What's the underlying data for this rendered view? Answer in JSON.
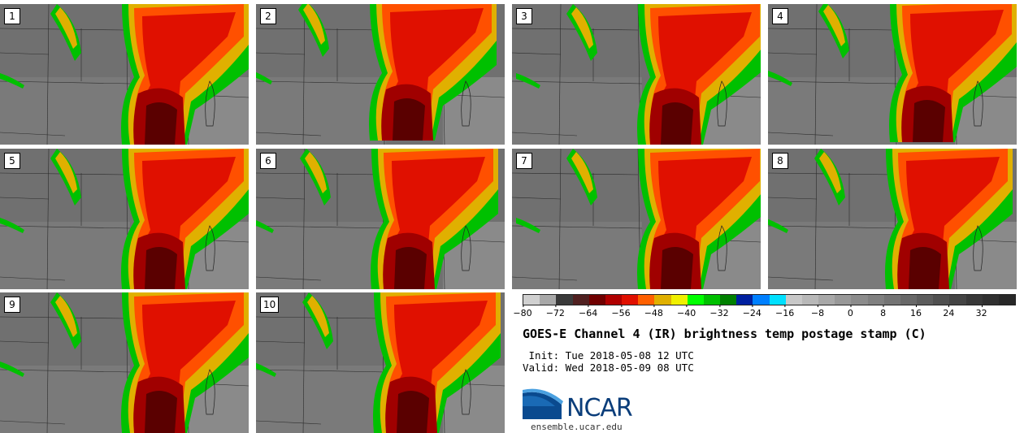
{
  "panels": [
    {
      "label": "1"
    },
    {
      "label": "2"
    },
    {
      "label": "3"
    },
    {
      "label": "4"
    },
    {
      "label": "5"
    },
    {
      "label": "6"
    },
    {
      "label": "7"
    },
    {
      "label": "8"
    },
    {
      "label": "9"
    },
    {
      "label": "10"
    }
  ],
  "legend": {
    "ticks": [
      "−80",
      "−72",
      "−64",
      "−56",
      "−48",
      "−40",
      "−32",
      "−24",
      "−16",
      "−8",
      "0",
      "8",
      "16",
      "24",
      "32"
    ],
    "range": [
      -80,
      40
    ],
    "colors": [
      "#d0d0d0",
      "#a8a8a8",
      "#3a3a3a",
      "#502020",
      "#700000",
      "#b00000",
      "#e01000",
      "#ff6000",
      "#e0b000",
      "#f0f000",
      "#00ff00",
      "#00c000",
      "#008000",
      "#0020a0",
      "#0080ff",
      "#00e0ff",
      "#c8c8c8",
      "#b8b8b8",
      "#a8a8a8",
      "#989898",
      "#8c8c8c",
      "#808080",
      "#747474",
      "#686868",
      "#5c5c5c",
      "#505050",
      "#444444",
      "#383838",
      "#303030",
      "#282828"
    ]
  },
  "title": "GOES-E Channel 4 (IR) brightness temp postage stamp (C)",
  "init_line": " Init: Tue 2018-05-08 12 UTC",
  "valid_line": "Valid: Wed 2018-05-09 08 UTC",
  "logo_text": "NCAR",
  "url": "ensemble.ucar.edu"
}
